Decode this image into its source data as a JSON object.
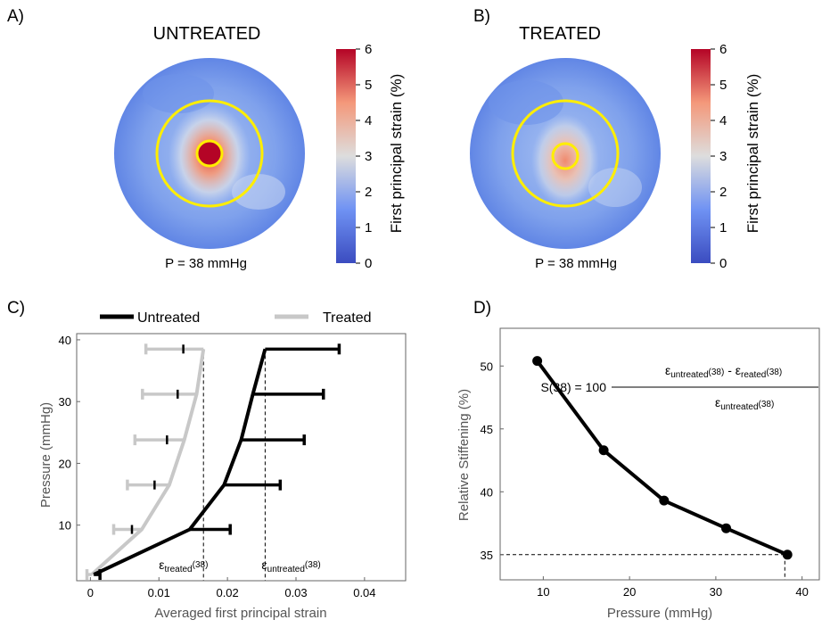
{
  "panels": {
    "a": "A)",
    "b": "B)",
    "c": "C)",
    "d": "D)"
  },
  "heatmaps": [
    {
      "id": "untreated",
      "title": "UNTREATED",
      "caption": "P = 38 mmHg",
      "colorbar_label": "First principal strain (%)",
      "colorbar_ticks": [
        "0",
        "1",
        "2",
        "3",
        "4",
        "5",
        "6"
      ],
      "center_strain_pct": 6.0
    },
    {
      "id": "treated",
      "title": "TREATED",
      "caption": "P = 38 mmHg",
      "colorbar_label": "First principal strain (%)",
      "colorbar_ticks": [
        "0",
        "1",
        "2",
        "3",
        "4",
        "5",
        "6"
      ],
      "center_strain_pct": 4.0
    }
  ],
  "colors": {
    "untreated": "#000000",
    "treated": "#c8c8c8",
    "ring": "#ffee00",
    "cmap_low": "#3b4cc0",
    "cmap_mid": "#dddddd",
    "cmap_high": "#b40426"
  },
  "chart_data": [
    {
      "type": "line",
      "xlabel": "Averaged first principal strain",
      "ylabel": "Pressure (mmHg)",
      "xlim": [
        -0.002,
        0.046
      ],
      "ylim": [
        1,
        41
      ],
      "x_ticks": [
        0,
        0.01,
        0.02,
        0.03,
        0.04
      ],
      "x_tick_labels": [
        "0",
        "0.01",
        "0.02",
        "0.03",
        "0.04"
      ],
      "y_ticks": [
        10,
        20,
        30,
        40
      ],
      "y_tick_labels": [
        "10",
        "20",
        "30",
        "40"
      ],
      "legend_position": "top",
      "series": [
        {
          "name": "Untreated",
          "points": [
            {
              "pressure": 2,
              "strain": 0.0005,
              "err": 0.0009
            },
            {
              "pressure": 9.3,
              "strain": 0.0145,
              "err": 0.0059
            },
            {
              "pressure": 16.5,
              "strain": 0.0195,
              "err": 0.0082
            },
            {
              "pressure": 23.8,
              "strain": 0.022,
              "err": 0.0092
            },
            {
              "pressure": 31.2,
              "strain": 0.0237,
              "err": 0.0103
            },
            {
              "pressure": 38.5,
              "strain": 0.0255,
              "err": 0.0108
            }
          ]
        },
        {
          "name": "Treated",
          "points": [
            {
              "pressure": 2,
              "strain": 0.0002,
              "err": 0.0007
            },
            {
              "pressure": 9.3,
              "strain": 0.0075,
              "err": 0.0041
            },
            {
              "pressure": 16.5,
              "strain": 0.0115,
              "err": 0.0061
            },
            {
              "pressure": 23.8,
              "strain": 0.0137,
              "err": 0.0072
            },
            {
              "pressure": 31.2,
              "strain": 0.0155,
              "err": 0.0079
            },
            {
              "pressure": 38.5,
              "strain": 0.0165,
              "err": 0.0084
            }
          ]
        }
      ],
      "reference_lines": [
        {
          "x": 0.0165,
          "label_main": "ε",
          "label_sub": "treated",
          "label_sup": "(38)"
        },
        {
          "x": 0.0255,
          "label_main": "ε",
          "label_sub": "untreated",
          "label_sup": "(38)"
        }
      ]
    },
    {
      "type": "line",
      "xlabel": "Pressure (mmHg)",
      "ylabel": "Relative Stiffening (%)",
      "xlim": [
        5,
        42
      ],
      "ylim": [
        33,
        53
      ],
      "x_ticks": [
        10,
        20,
        30,
        40
      ],
      "x_tick_labels": [
        "10",
        "20",
        "30",
        "40"
      ],
      "y_ticks": [
        35,
        40,
        45,
        50
      ],
      "y_tick_labels": [
        "35",
        "40",
        "45",
        "50"
      ],
      "x": [
        9.3,
        17,
        24,
        31.2,
        38.3
      ],
      "y": [
        50.4,
        43.3,
        39.3,
        37.1,
        35.0
      ],
      "reference": {
        "x": 38,
        "y": 35
      },
      "formula": {
        "lhs": "S(38) = 100",
        "num_a": "ε",
        "num_a_sub": "untreated",
        "num_a_sup": "(38)",
        "minus": " - ",
        "num_b": "ε",
        "num_b_sub": "reated",
        "num_b_sup": "(38)",
        "den": "ε",
        "den_sub": "untreated",
        "den_sup": "(38)"
      }
    }
  ]
}
